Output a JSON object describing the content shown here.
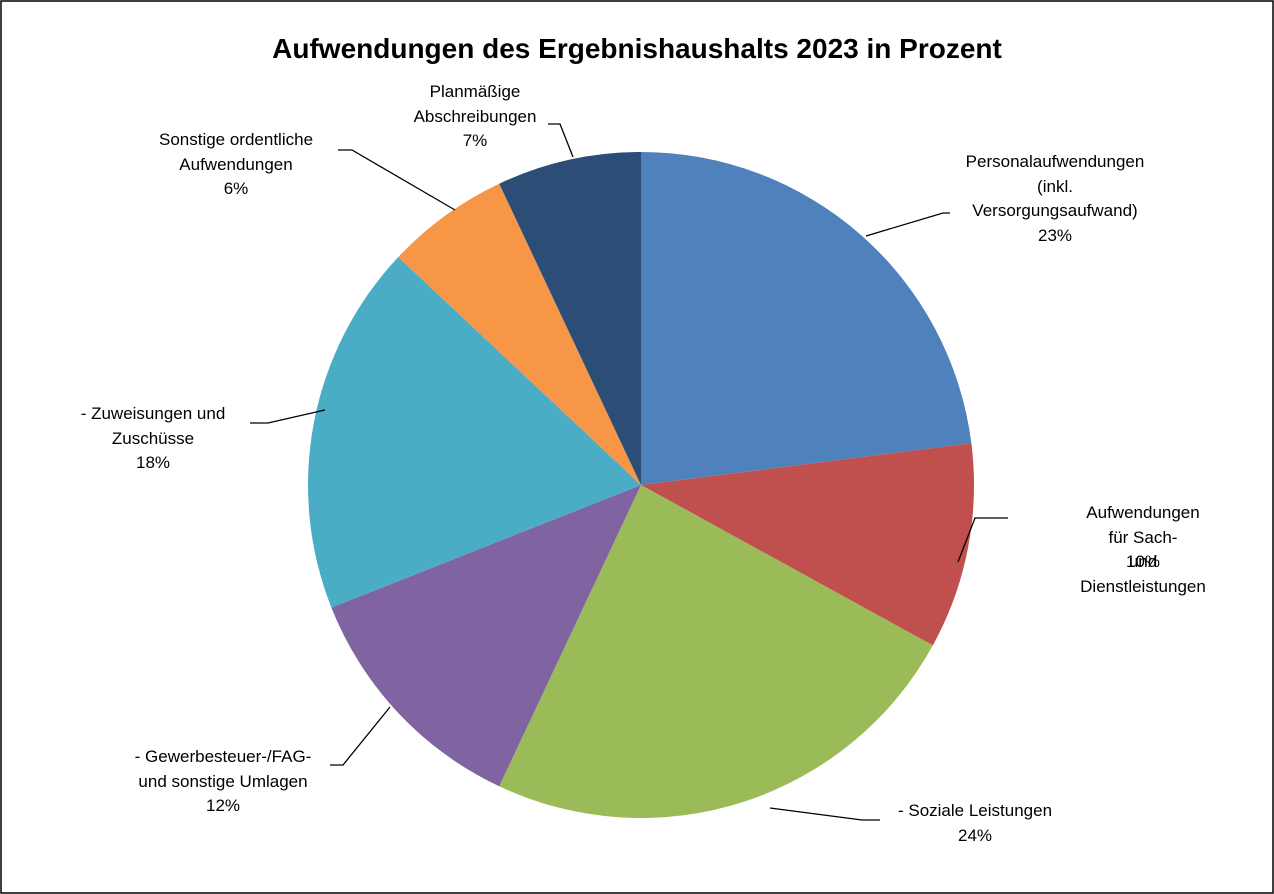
{
  "chart_data": {
    "type": "pie",
    "title": "Aufwendungen des Ergebnishaushalts 2023 in Prozent",
    "categories": [
      "Personalaufwendungen\n(inkl.\nVersorgungsaufwand)",
      "Aufwendungen für Sach-\nund Dienstleistungen",
      "- Soziale Leistungen",
      "- Gewerbesteuer-/FAG-\nund sonstige Umlagen",
      "- Zuweisungen und\nZuschüsse",
      "Sonstige ordentliche\nAufwendungen",
      "Planmäßige\nAbschreibungen"
    ],
    "values": [
      23,
      10,
      24,
      12,
      18,
      6,
      7
    ],
    "value_labels": [
      "23%",
      "10%",
      "24%",
      "12%",
      "18%",
      "6%",
      "7%"
    ],
    "colors": [
      "#4f81bd",
      "#c0504d",
      "#9bbb59",
      "#8064a2",
      "#4bacc6",
      "#f79646",
      "#2c4d75"
    ]
  }
}
